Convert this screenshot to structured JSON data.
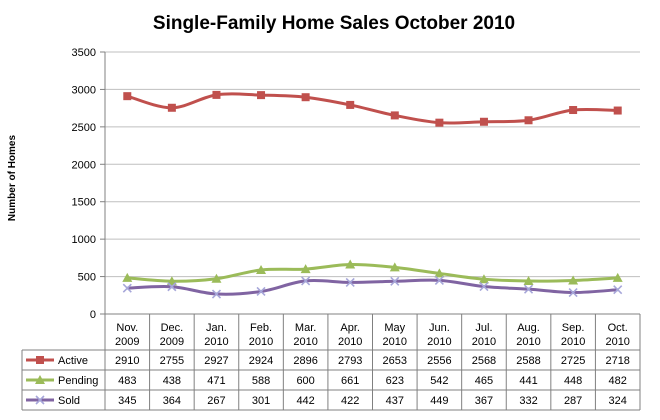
{
  "chart_data": {
    "type": "line",
    "title": "Single-Family Home Sales October 2010",
    "ylabel": "Number of Homes",
    "xlabel": "",
    "ylim": [
      0,
      3500
    ],
    "yticks": [
      "0",
      "500",
      "1000",
      "1500",
      "2000",
      "2500",
      "3000",
      "3500"
    ],
    "ytick_values": [
      0,
      500,
      1000,
      1500,
      2000,
      2500,
      3000,
      3500
    ],
    "grid": "horizontal",
    "legend": "data-table",
    "categories": [
      [
        "Nov.",
        "2009"
      ],
      [
        "Dec.",
        "2009"
      ],
      [
        "Jan.",
        "2010"
      ],
      [
        "Feb.",
        "2010"
      ],
      [
        "Mar.",
        "2010"
      ],
      [
        "Apr.",
        "2010"
      ],
      [
        "May",
        "2010"
      ],
      [
        "Jun.",
        "2010"
      ],
      [
        "Jul.",
        "2010"
      ],
      [
        "Aug.",
        "2010"
      ],
      [
        "Sep.",
        "2010"
      ],
      [
        "Oct.",
        "2010"
      ]
    ],
    "series": [
      {
        "name": "Active",
        "color": "#C0504D",
        "marker": "square",
        "values": [
          2910,
          2755,
          2927,
          2924,
          2896,
          2793,
          2653,
          2556,
          2568,
          2588,
          2725,
          2718
        ]
      },
      {
        "name": "Pending",
        "color": "#9BBB59",
        "marker": "triangle",
        "values": [
          483,
          438,
          471,
          588,
          600,
          661,
          623,
          542,
          465,
          441,
          448,
          482
        ]
      },
      {
        "name": "Sold",
        "color": "#8064A2",
        "marker": "x",
        "values": [
          345,
          364,
          267,
          301,
          442,
          422,
          437,
          449,
          367,
          332,
          287,
          324
        ]
      }
    ]
  }
}
